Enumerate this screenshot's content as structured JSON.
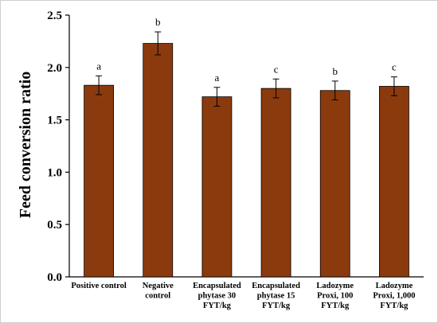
{
  "chart_data": {
    "type": "bar",
    "title": "",
    "xlabel": "",
    "ylabel": "Feed conversion ratio",
    "ylim": [
      0,
      2.5
    ],
    "yticks": [
      "0.0",
      "0.5",
      "1.0",
      "1.5",
      "2.0",
      "2.5"
    ],
    "grid": false,
    "bar_color": "#8B3A0E",
    "categories": [
      [
        "Positive control"
      ],
      [
        "Negative",
        "control"
      ],
      [
        "Encapsulated",
        "phytase 30",
        "FYT/kg"
      ],
      [
        "Encapsulated",
        "phytase 15",
        "FYT/kg"
      ],
      [
        "Ladozyme",
        "Proxi, 100",
        "FYT/kg"
      ],
      [
        "Ladozyme",
        "Proxi, 1,000",
        "FYT/kg"
      ]
    ],
    "values": [
      1.83,
      2.23,
      1.72,
      1.8,
      1.78,
      1.82
    ],
    "errors": [
      0.09,
      0.11,
      0.09,
      0.09,
      0.09,
      0.09
    ],
    "significance_letters": [
      "a",
      "b",
      "a",
      "c",
      "b",
      "c"
    ]
  }
}
